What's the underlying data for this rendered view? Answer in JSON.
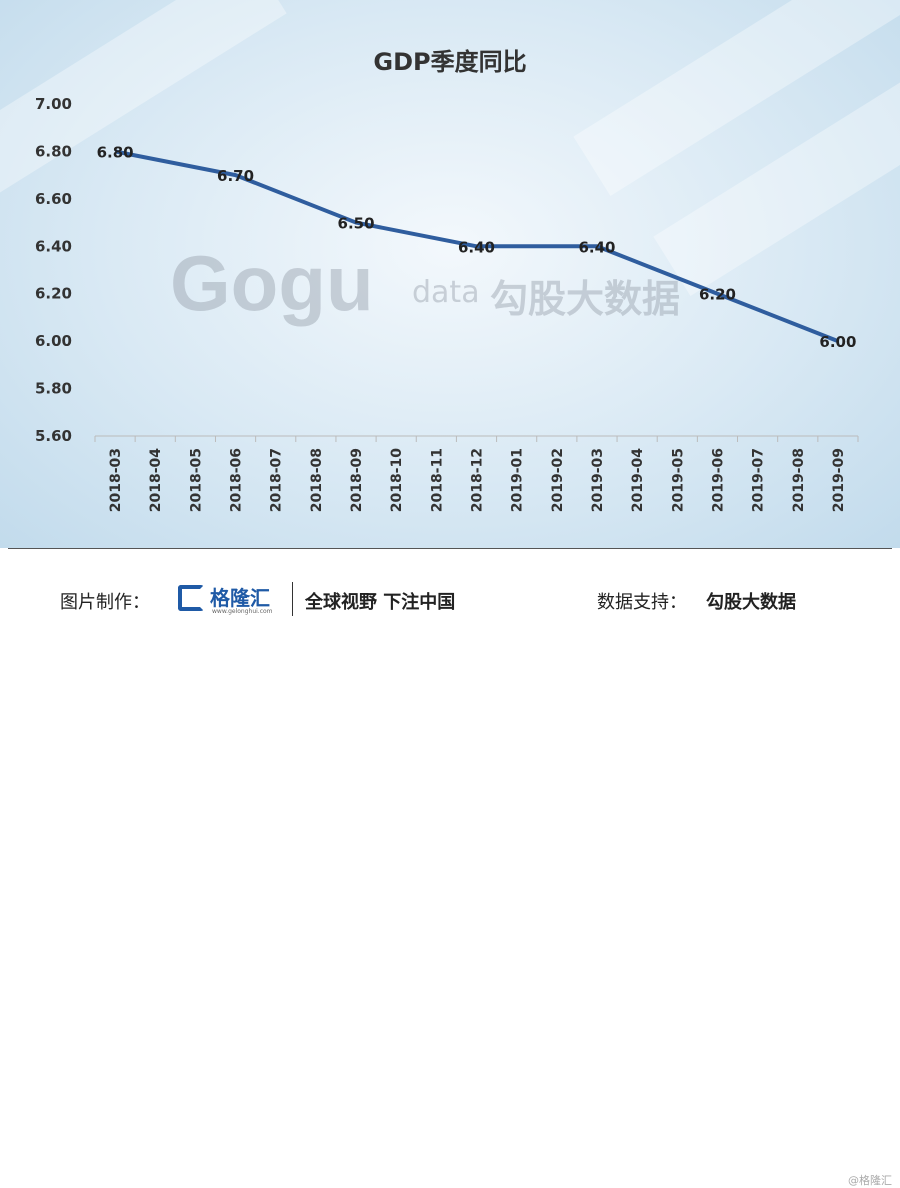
{
  "chart_data": {
    "type": "line",
    "title": "GDP季度同比",
    "categories": [
      "2018-03",
      "2018-04",
      "2018-05",
      "2018-06",
      "2018-07",
      "2018-08",
      "2018-09",
      "2018-10",
      "2018-11",
      "2018-12",
      "2019-01",
      "2019-02",
      "2019-03",
      "2019-04",
      "2019-05",
      "2019-06",
      "2019-07",
      "2019-08",
      "2019-09"
    ],
    "points": [
      {
        "x": "2018-03",
        "y": 6.8,
        "label": "6.80"
      },
      {
        "x": "2018-06",
        "y": 6.7,
        "label": "6.70"
      },
      {
        "x": "2018-09",
        "y": 6.5,
        "label": "6.50"
      },
      {
        "x": "2018-12",
        "y": 6.4,
        "label": "6.40"
      },
      {
        "x": "2019-03",
        "y": 6.4,
        "label": "6.40"
      },
      {
        "x": "2019-06",
        "y": 6.2,
        "label": "6.20"
      },
      {
        "x": "2019-09",
        "y": 6.0,
        "label": "6.00"
      }
    ],
    "yticks": [
      "5.60",
      "5.80",
      "6.00",
      "6.20",
      "6.40",
      "6.60",
      "6.80",
      "7.00"
    ],
    "ylim": [
      5.6,
      7.0
    ],
    "grid": false,
    "line_color": "#2f5d9e",
    "xlabel": "",
    "ylabel": ""
  },
  "watermark": {
    "logo": "Gogu",
    "sub": "data",
    "cn": "勾股大数据"
  },
  "footer": {
    "maker_label": "图片制作：",
    "logo_name": "格隆汇",
    "logo_url": "www.gelonghui.com",
    "slogan": "全球视野 下注中国",
    "support_label": "数据支持：",
    "support_value": "勾股大数据",
    "corner": "@格隆汇"
  },
  "colors": {
    "brand": "#1f5aa6",
    "line": "#2f5d9e"
  }
}
